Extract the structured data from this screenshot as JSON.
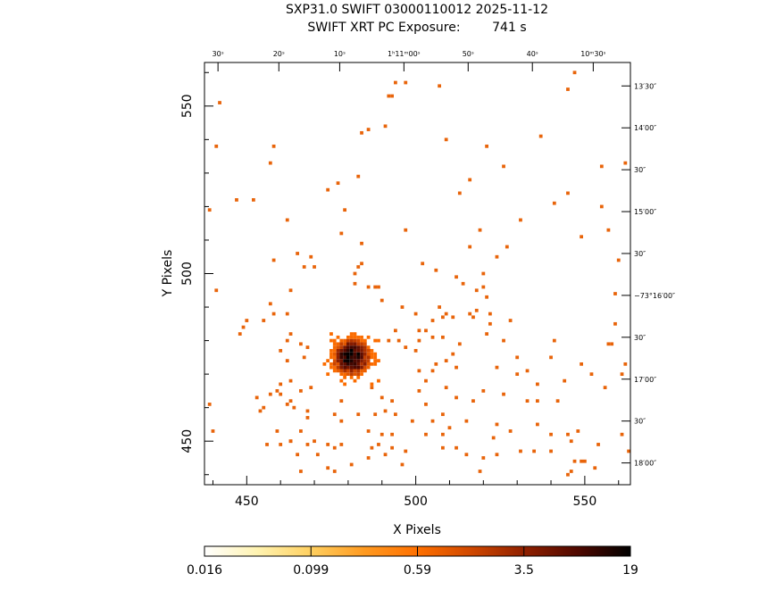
{
  "header": {
    "line1": "SXP31.0 SWIFT 03000110012 2025-11-12",
    "line2": "SWIFT XRT PC Exposure:        741 s"
  },
  "chart_data": {
    "type": "heatmap",
    "title": "SXP31.0 SWIFT 03000110012 2025-11-12",
    "subtitle": "SWIFT XRT PC Exposure:        741 s",
    "xlabel": "X Pixels",
    "ylabel": "Y Pixels",
    "xlim": [
      437.5,
      563.5
    ],
    "ylim": [
      437,
      563
    ],
    "x_ticks": [
      450,
      500,
      550
    ],
    "y_ticks": [
      450,
      500,
      550
    ],
    "x_tick_labels": [
      "450",
      "500",
      "550"
    ],
    "y_tick_labels": [
      "450",
      "500",
      "550"
    ],
    "top_ra_labels": [
      {
        "x": 441.5,
        "label": "30ˢ"
      },
      {
        "x": 459.5,
        "label": "20ˢ"
      },
      {
        "x": 477.5,
        "label": "10ˢ"
      },
      {
        "x": 496.5,
        "label": "1ʰ11ᵐ00ˢ"
      },
      {
        "x": 515.5,
        "label": "50ˢ"
      },
      {
        "x": 534.5,
        "label": "40ˢ"
      },
      {
        "x": 552.5,
        "label": "10ᵐ30ˢ"
      }
    ],
    "right_dec_labels": [
      {
        "y": 556,
        "label": "13′30″"
      },
      {
        "y": 543.5,
        "label": "14′00″"
      },
      {
        "y": 531,
        "label": "30″"
      },
      {
        "y": 518.5,
        "label": "15′00″"
      },
      {
        "y": 506,
        "label": "30″"
      },
      {
        "y": 493.5,
        "label": "−73°16′00″"
      },
      {
        "y": 481,
        "label": "30″"
      },
      {
        "y": 468.5,
        "label": "17′00″"
      },
      {
        "y": 456,
        "label": "30″"
      },
      {
        "y": 443.5,
        "label": "18′00″"
      }
    ],
    "colorbar": {
      "tick_labels": [
        "0.016",
        "0.099",
        "0.59",
        "3.5",
        "19"
      ],
      "scale": "log",
      "range": [
        0.016,
        19
      ],
      "colormap": [
        "#ffffff",
        "#fff3b0",
        "#ffd060",
        "#ff9a20",
        "#ff7000",
        "#d04800",
        "#902000",
        "#500800",
        "#000000"
      ]
    },
    "background_points": [
      [
        442,
        551
      ],
      [
        441,
        538
      ],
      [
        439,
        519
      ],
      [
        441,
        495
      ],
      [
        439,
        461
      ],
      [
        440,
        453
      ],
      [
        447,
        522
      ],
      [
        452,
        522
      ],
      [
        457,
        533
      ],
      [
        458,
        538
      ],
      [
        462,
        516
      ],
      [
        458,
        504
      ],
      [
        465,
        506
      ],
      [
        467,
        502
      ],
      [
        469,
        505
      ],
      [
        463,
        495
      ],
      [
        457,
        491
      ],
      [
        458,
        488
      ],
      [
        455,
        486
      ],
      [
        450,
        486
      ],
      [
        449,
        484
      ],
      [
        448,
        482
      ],
      [
        463,
        482
      ],
      [
        462,
        488
      ],
      [
        462,
        480
      ],
      [
        460,
        477
      ],
      [
        466,
        479
      ],
      [
        468,
        478
      ],
      [
        467,
        475
      ],
      [
        462,
        474
      ],
      [
        463,
        468
      ],
      [
        463,
        462
      ],
      [
        460,
        467
      ],
      [
        459,
        465
      ],
      [
        466,
        465
      ],
      [
        469,
        466
      ],
      [
        457,
        464
      ],
      [
        468,
        459
      ],
      [
        468,
        457
      ],
      [
        464,
        460
      ],
      [
        462,
        461
      ],
      [
        460,
        464
      ],
      [
        459,
        453
      ],
      [
        460,
        449
      ],
      [
        463,
        450
      ],
      [
        466,
        453
      ],
      [
        465,
        446
      ],
      [
        466,
        441
      ],
      [
        474,
        442
      ],
      [
        476,
        441
      ],
      [
        474,
        449
      ],
      [
        476,
        448
      ],
      [
        478,
        449
      ],
      [
        476,
        458
      ],
      [
        478,
        456
      ],
      [
        478,
        462
      ],
      [
        483,
        458
      ],
      [
        486,
        453
      ],
      [
        490,
        452
      ],
      [
        487,
        448
      ],
      [
        481,
        443
      ],
      [
        486,
        445
      ],
      [
        489,
        449
      ],
      [
        491,
        446
      ],
      [
        493,
        448
      ],
      [
        488,
        458
      ],
      [
        491,
        459
      ],
      [
        490,
        463
      ],
      [
        487,
        466
      ],
      [
        493,
        462
      ],
      [
        494,
        458
      ],
      [
        492,
        480
      ],
      [
        494,
        483
      ],
      [
        495,
        480
      ],
      [
        497,
        478
      ],
      [
        500,
        477
      ],
      [
        496,
        490
      ],
      [
        501,
        483
      ],
      [
        503,
        483
      ],
      [
        501,
        480
      ],
      [
        500,
        488
      ],
      [
        507,
        490
      ],
      [
        508,
        487
      ],
      [
        509,
        488
      ],
      [
        505,
        486
      ],
      [
        505,
        481
      ],
      [
        508,
        481
      ],
      [
        511,
        487
      ],
      [
        516,
        488
      ],
      [
        518,
        489
      ],
      [
        506,
        473
      ],
      [
        505,
        471
      ],
      [
        501,
        471
      ],
      [
        503,
        468
      ],
      [
        501,
        465
      ],
      [
        503,
        461
      ],
      [
        505,
        456
      ],
      [
        503,
        452
      ],
      [
        508,
        452
      ],
      [
        508,
        448
      ],
      [
        515,
        446
      ],
      [
        515,
        456
      ],
      [
        520,
        445
      ],
      [
        524,
        472
      ],
      [
        526,
        480
      ],
      [
        528,
        486
      ],
      [
        526,
        464
      ],
      [
        533,
        471
      ],
      [
        536,
        467
      ],
      [
        536,
        462
      ],
      [
        540,
        475
      ],
      [
        541,
        480
      ],
      [
        540,
        452
      ],
      [
        535,
        447
      ],
      [
        545,
        452
      ],
      [
        546,
        450
      ],
      [
        547,
        444
      ],
      [
        545,
        440
      ],
      [
        549,
        444
      ],
      [
        554,
        449
      ],
      [
        557,
        479
      ],
      [
        558,
        479
      ],
      [
        559,
        485
      ],
      [
        559,
        494
      ],
      [
        560,
        504
      ],
      [
        557,
        513
      ],
      [
        549,
        511
      ],
      [
        545,
        524
      ],
      [
        541,
        521
      ],
      [
        537,
        541
      ],
      [
        526,
        532
      ],
      [
        521,
        538
      ],
      [
        516,
        528
      ],
      [
        513,
        524
      ],
      [
        509,
        540
      ],
      [
        507,
        556
      ],
      [
        491,
        544
      ],
      [
        486,
        543
      ],
      [
        484,
        542
      ],
      [
        484,
        509
      ],
      [
        484,
        503
      ],
      [
        483,
        502
      ],
      [
        482,
        500
      ],
      [
        482,
        497
      ],
      [
        486,
        496
      ],
      [
        488,
        496
      ],
      [
        490,
        492
      ],
      [
        489,
        496
      ],
      [
        474,
        525
      ],
      [
        470,
        502
      ],
      [
        478,
        512
      ],
      [
        479,
        519
      ],
      [
        477,
        527
      ],
      [
        483,
        529
      ],
      [
        492,
        553
      ],
      [
        493,
        553
      ],
      [
        494,
        557
      ],
      [
        497,
        557
      ],
      [
        497,
        513
      ],
      [
        502,
        503
      ],
      [
        506,
        501
      ],
      [
        512,
        499
      ],
      [
        514,
        497
      ],
      [
        518,
        495
      ],
      [
        520,
        496
      ],
      [
        521,
        493
      ],
      [
        522,
        488
      ],
      [
        517,
        487
      ],
      [
        521,
        482
      ],
      [
        522,
        485
      ],
      [
        513,
        479
      ],
      [
        511,
        476
      ],
      [
        509,
        474
      ],
      [
        512,
        472
      ],
      [
        509,
        466
      ],
      [
        512,
        463
      ],
      [
        517,
        462
      ],
      [
        520,
        465
      ],
      [
        524,
        455
      ],
      [
        523,
        451
      ],
      [
        528,
        453
      ],
      [
        533,
        462
      ],
      [
        530,
        470
      ],
      [
        530,
        475
      ],
      [
        536,
        455
      ],
      [
        542,
        462
      ],
      [
        544,
        468
      ],
      [
        549,
        473
      ],
      [
        552,
        470
      ],
      [
        556,
        466
      ],
      [
        561,
        470
      ],
      [
        562,
        473
      ],
      [
        546,
        441
      ],
      [
        550,
        444
      ],
      [
        561,
        452
      ],
      [
        563,
        447
      ],
      [
        531,
        447
      ],
      [
        524,
        446
      ],
      [
        519,
        441
      ],
      [
        512,
        448
      ],
      [
        510,
        454
      ],
      [
        508,
        458
      ],
      [
        499,
        456
      ],
      [
        497,
        447
      ],
      [
        496,
        443
      ],
      [
        493,
        452
      ],
      [
        471,
        446
      ],
      [
        470,
        450
      ],
      [
        468,
        449
      ],
      [
        463,
        450
      ],
      [
        456,
        449
      ],
      [
        455,
        460
      ],
      [
        453,
        463
      ],
      [
        454,
        459
      ],
      [
        548,
        453
      ],
      [
        540,
        447
      ],
      [
        553,
        442
      ],
      [
        545,
        555
      ],
      [
        547,
        560
      ],
      [
        555,
        532
      ],
      [
        562,
        533
      ],
      [
        555,
        520
      ],
      [
        531,
        516
      ],
      [
        527,
        508
      ],
      [
        524,
        505
      ],
      [
        520,
        500
      ],
      [
        516,
        508
      ],
      [
        519,
        513
      ]
    ],
    "cluster_center": [
      481,
      475
    ],
    "cluster_peak_value": 19
  }
}
